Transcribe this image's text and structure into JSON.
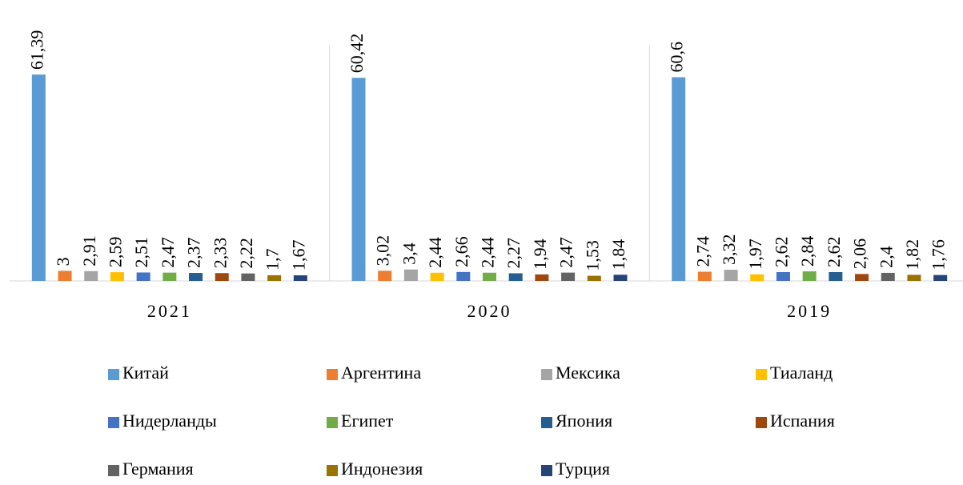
{
  "chart_data": {
    "type": "bar",
    "categories": [
      "2021",
      "2020",
      "2019"
    ],
    "ylim": [
      0,
      70
    ],
    "series": [
      {
        "name": "Китай",
        "color": "#5b9bd5",
        "values": [
          61.39,
          60.42,
          60.6
        ],
        "value_labels": [
          "61,39",
          "60,42",
          "60,6"
        ]
      },
      {
        "name": "Аргентина",
        "color": "#ed7d31",
        "values": [
          3,
          3.02,
          2.74
        ],
        "value_labels": [
          "3",
          "3,02",
          "2,74"
        ]
      },
      {
        "name": "Мексика",
        "color": "#a5a5a5",
        "values": [
          2.91,
          3.4,
          3.32
        ],
        "value_labels": [
          "2,91",
          "3,4",
          "3,32"
        ]
      },
      {
        "name": "Тиаланд",
        "color": "#ffc000",
        "values": [
          2.59,
          2.44,
          1.97
        ],
        "value_labels": [
          "2,59",
          "2,44",
          "1,97"
        ]
      },
      {
        "name": "Нидерланды",
        "color": "#4472c4",
        "values": [
          2.51,
          2.66,
          2.62
        ],
        "value_labels": [
          "2,51",
          "2,66",
          "2,62"
        ]
      },
      {
        "name": "Египет",
        "color": "#70ad47",
        "values": [
          2.47,
          2.44,
          2.84
        ],
        "value_labels": [
          "2,47",
          "2,44",
          "2,84"
        ]
      },
      {
        "name": "Япония",
        "color": "#255e91",
        "values": [
          2.37,
          2.27,
          2.62
        ],
        "value_labels": [
          "2,37",
          "2,27",
          "2,62"
        ]
      },
      {
        "name": "Испания",
        "color": "#9e480e",
        "values": [
          2.33,
          1.94,
          2.06
        ],
        "value_labels": [
          "2,33",
          "1,94",
          "2,06"
        ]
      },
      {
        "name": "Германия",
        "color": "#636363",
        "values": [
          2.22,
          2.47,
          2.4
        ],
        "value_labels": [
          "2,22",
          "2,47",
          "2,4"
        ]
      },
      {
        "name": "Индонезия",
        "color": "#997300",
        "values": [
          1.7,
          1.53,
          1.82
        ],
        "value_labels": [
          "1,7",
          "1,53",
          "1,82"
        ]
      },
      {
        "name": "Турция",
        "color": "#264478",
        "values": [
          1.67,
          1.84,
          1.76
        ],
        "value_labels": [
          "1,67",
          "1,84",
          "1,76"
        ]
      }
    ]
  }
}
